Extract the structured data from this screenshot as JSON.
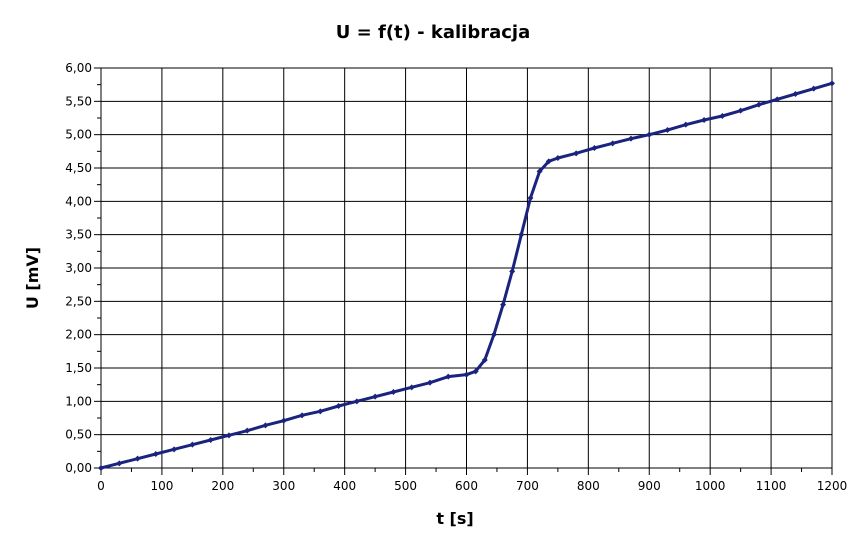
{
  "chart_data": {
    "type": "line",
    "title": "U = f(t) - kalibracja",
    "xlabel": "t [s]",
    "ylabel": "U [mV]",
    "xlim": [
      0,
      1200
    ],
    "ylim": [
      0,
      6
    ],
    "x_ticks": [
      0,
      100,
      200,
      300,
      400,
      500,
      600,
      700,
      800,
      900,
      1000,
      1100,
      1200
    ],
    "x_tick_labels": [
      "0",
      "100",
      "200",
      "300",
      "400",
      "500",
      "600",
      "700",
      "800",
      "900",
      "1000",
      "1100",
      "1200"
    ],
    "y_ticks": [
      0,
      0.5,
      1,
      1.5,
      2,
      2.5,
      3,
      3.5,
      4,
      4.5,
      5,
      5.5,
      6
    ],
    "y_tick_labels": [
      "0,00",
      "0,50",
      "1,00",
      "1,50",
      "2,00",
      "2,50",
      "3,00",
      "3,50",
      "4,00",
      "4,50",
      "5,00",
      "5,50",
      "6,00"
    ],
    "grid": true,
    "legend": "none",
    "series": [
      {
        "color": "#1a237e",
        "marker": "diamond",
        "x": [
          0,
          30,
          60,
          90,
          120,
          150,
          180,
          210,
          240,
          270,
          300,
          330,
          360,
          390,
          420,
          450,
          480,
          510,
          540,
          570,
          600,
          615,
          630,
          645,
          660,
          675,
          690,
          705,
          720,
          735,
          750,
          780,
          810,
          840,
          870,
          900,
          930,
          960,
          990,
          1020,
          1050,
          1080,
          1110,
          1140,
          1170,
          1200
        ],
        "y": [
          0.0,
          0.07,
          0.14,
          0.21,
          0.28,
          0.35,
          0.42,
          0.49,
          0.56,
          0.64,
          0.71,
          0.79,
          0.85,
          0.93,
          1.0,
          1.07,
          1.14,
          1.21,
          1.28,
          1.37,
          1.4,
          1.45,
          1.62,
          2.0,
          2.45,
          2.95,
          3.5,
          4.05,
          4.45,
          4.6,
          4.65,
          4.72,
          4.8,
          4.87,
          4.94,
          5.0,
          5.07,
          5.15,
          5.22,
          5.28,
          5.36,
          5.45,
          5.53,
          5.61,
          5.69,
          5.77
        ]
      }
    ]
  }
}
